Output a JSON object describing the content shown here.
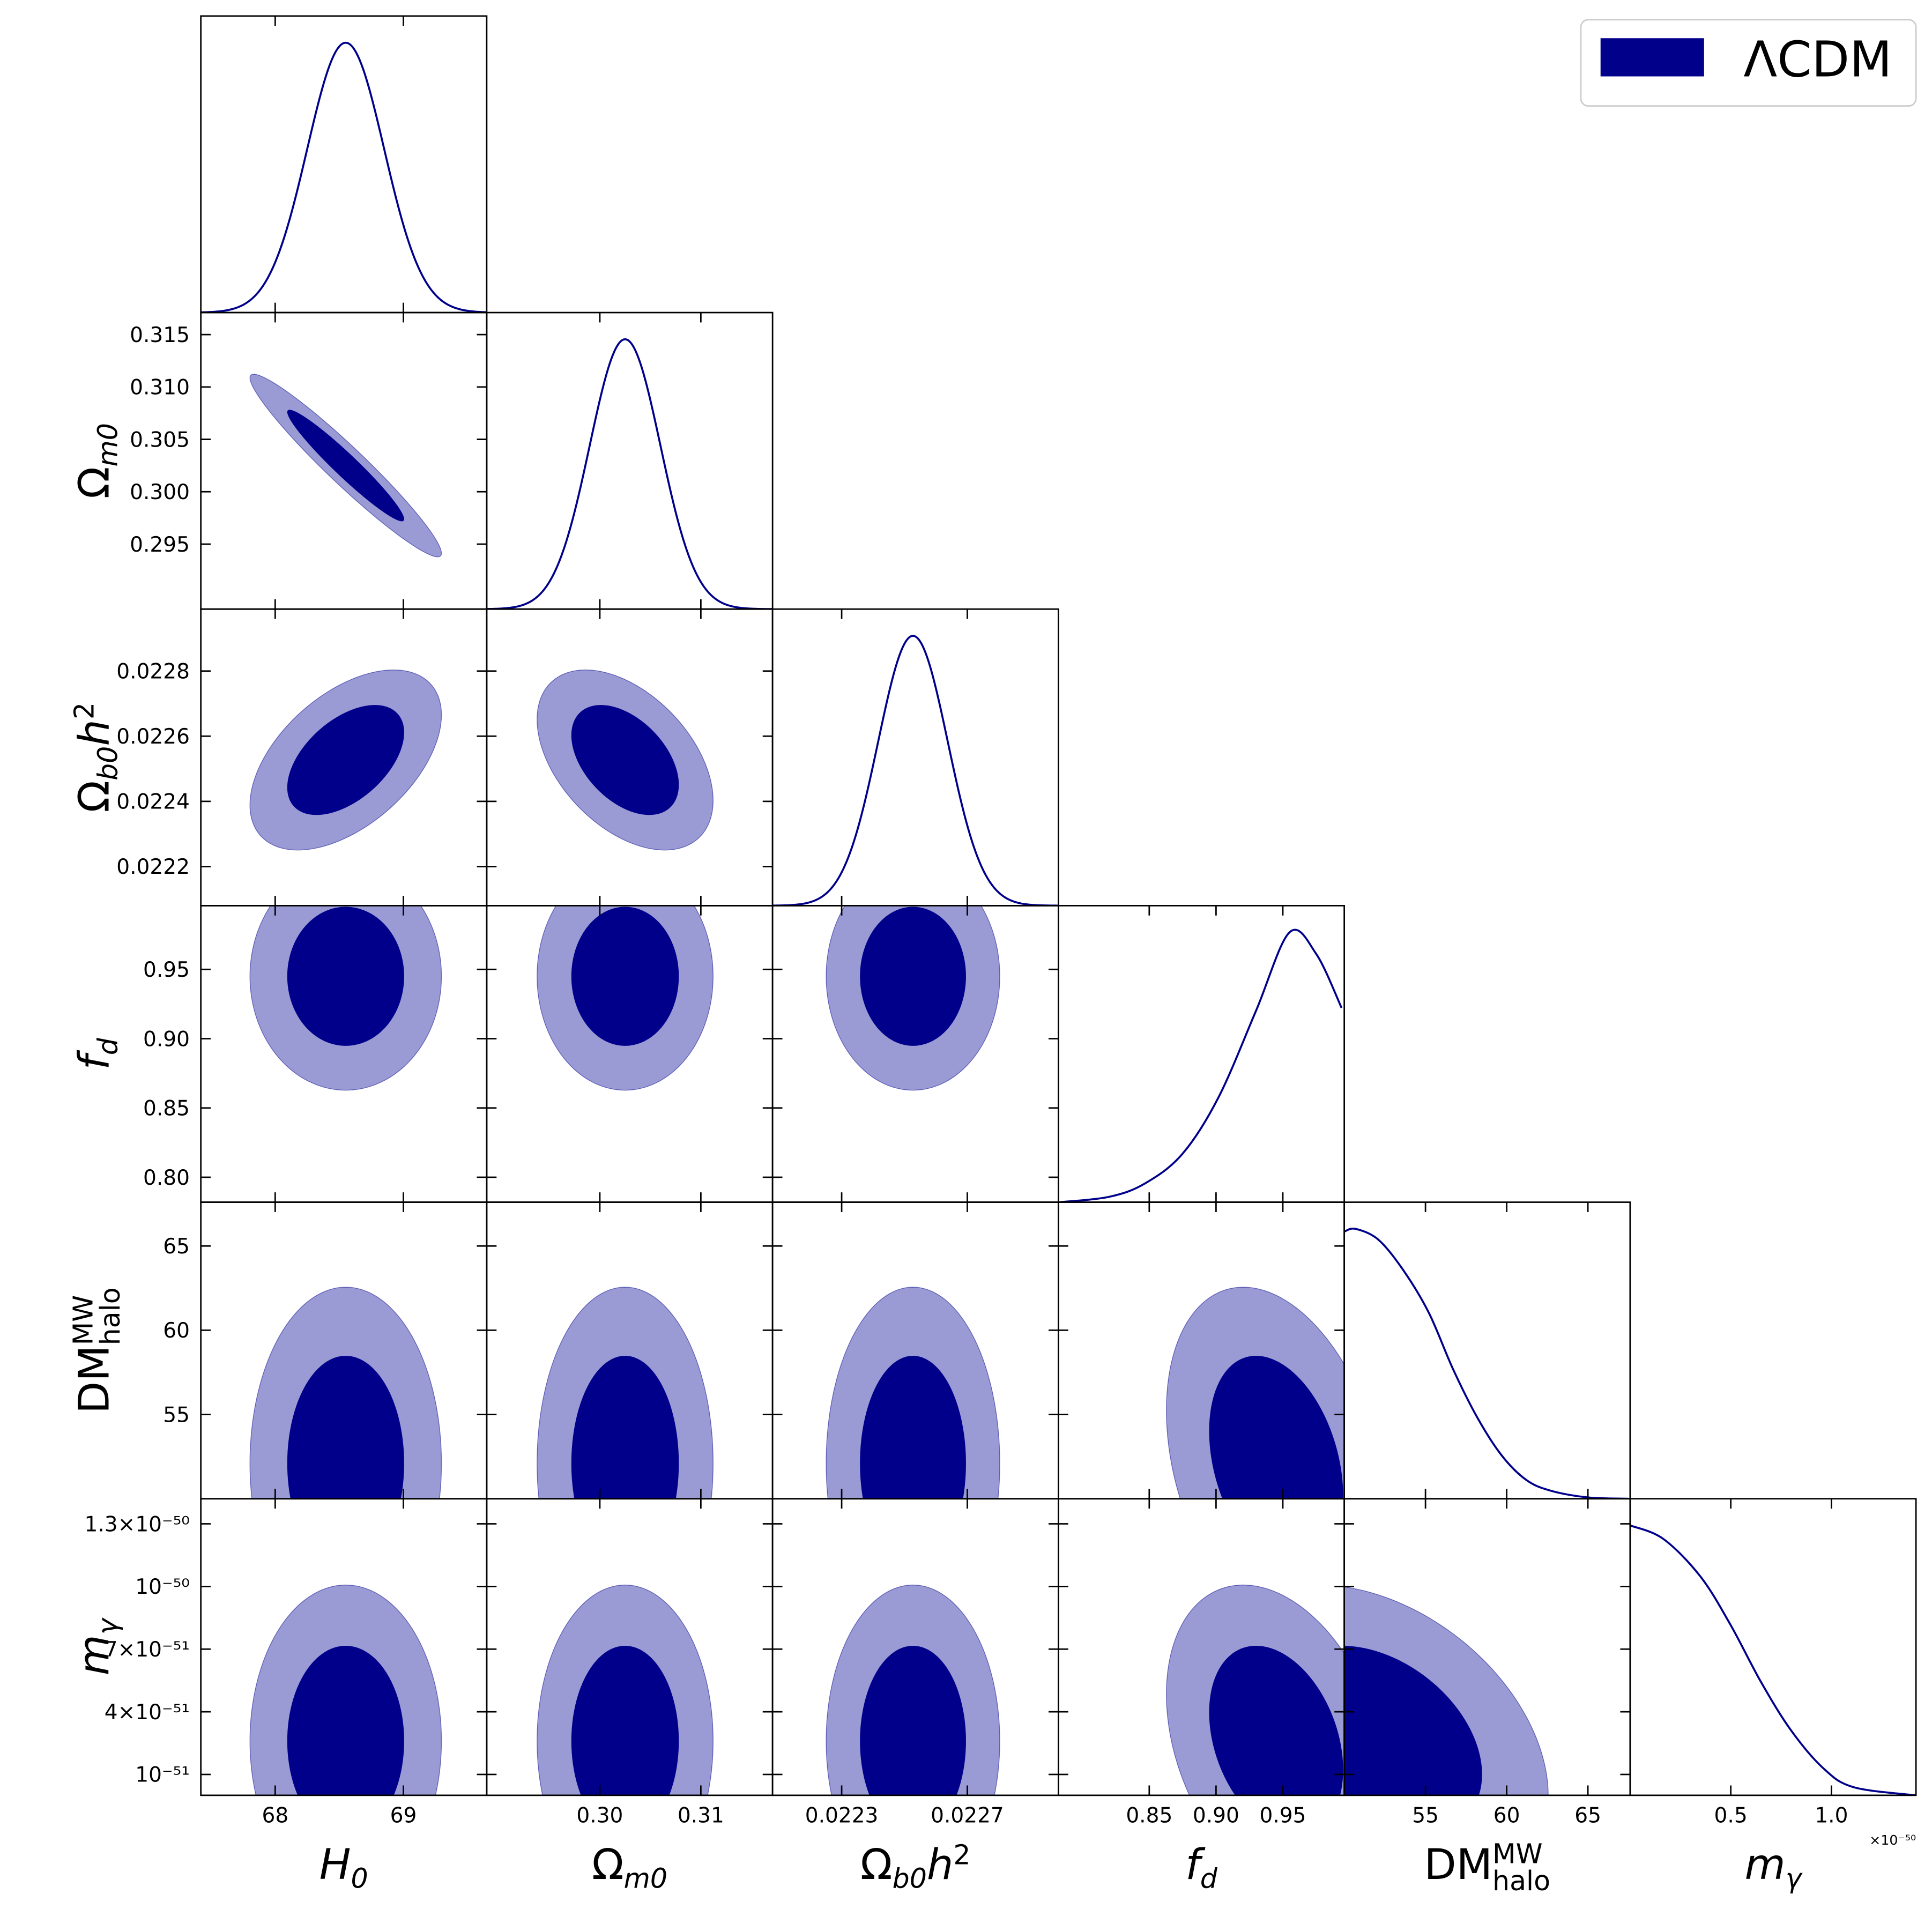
{
  "chart_data": {
    "type": "corner",
    "series": [
      {
        "name": "ΛCDM",
        "color": "#00008b",
        "color_outer": "#9a9ad4"
      }
    ],
    "legend": "upper right",
    "params": [
      {
        "label": {
          "main": "H",
          "sub": "0"
        },
        "italic": true,
        "lim": [
          67.42,
          69.65
        ],
        "mean": 68.55,
        "sigma": 0.3,
        "xticks": [
          68,
          69
        ]
      },
      {
        "label": {
          "main": "Ω",
          "sub": "m0"
        },
        "italic": false,
        "lim": [
          0.2888,
          0.3171
        ],
        "mean": 0.3025,
        "sigma": 0.0035,
        "xticks": [
          {
            "value": 0.3,
            "label": "0.30"
          },
          0.31
        ],
        "yticks": [
          0.295,
          {
            "value": 0.3,
            "label": "0.300"
          },
          0.305,
          {
            "value": 0.31,
            "label": "0.310"
          },
          0.315
        ]
      },
      {
        "label": {
          "main": "Ω",
          "sub": "b0",
          "post": "h",
          "sup": "2"
        },
        "italic": false,
        "lim": [
          0.02208,
          0.02299
        ],
        "mean": 0.022527,
        "sigma": 0.000111,
        "xticks": [
          0.0223,
          0.0227
        ],
        "yticks": [
          0.0222,
          0.0224,
          0.0226,
          0.0228
        ]
      },
      {
        "label": {
          "main": "f",
          "sub": "d"
        },
        "italic": true,
        "lim": [
          0.782,
          0.996
        ],
        "mean": 0.945,
        "sigma": 0.033,
        "xticks": [
          0.85,
          {
            "value": 0.9,
            "label": "0.90"
          },
          0.95
        ],
        "yticks": [
          {
            "value": 0.8,
            "label": "0.80"
          },
          0.85,
          {
            "value": 0.9,
            "label": "0.90"
          },
          0.95
        ],
        "marginal": {
          "x": [
            0.783,
            0.82,
            0.847,
            0.875,
            0.902,
            0.93,
            0.955,
            0.975,
            0.994
          ],
          "density": [
            0,
            0.02,
            0.07,
            0.18,
            0.39,
            0.71,
            1.0,
            0.92,
            0.72
          ]
        }
      },
      {
        "label": {
          "main": "DM",
          "sup": "MW",
          "sub": "halo"
        },
        "italic": false,
        "lim": [
          50,
          67.6
        ],
        "mean": 52.1,
        "sigma": 4.2,
        "xticks": [
          55,
          60,
          65
        ],
        "yticks": [
          55,
          60,
          65
        ],
        "marginal": {
          "x": [
            50,
            50.7,
            52.1,
            53.6,
            55.2,
            56.7,
            58.2,
            59.7,
            61.2,
            62.7,
            65,
            67.5
          ],
          "density": [
            0.99,
            1.0,
            0.96,
            0.85,
            0.69,
            0.48,
            0.3,
            0.16,
            0.07,
            0.03,
            0.005,
            0
          ]
        }
      },
      {
        "label": {
          "main": "m",
          "sub": "γ"
        },
        "italic": true,
        "lim": [
          0,
          1.42
        ],
        "mean": 0.26,
        "sigma": 0.3,
        "xticks": [
          0.5,
          {
            "value": 1,
            "label": "1.0"
          }
        ],
        "yticks": [
          {
            "value": 0.1,
            "label": "10⁻⁵¹"
          },
          {
            "value": 0.4,
            "label": "4×10⁻⁵¹"
          },
          {
            "value": 0.7,
            "label": "7×10⁻⁵¹"
          },
          {
            "value": 1,
            "label": "10⁻⁵⁰"
          },
          {
            "value": 1.3,
            "label": "1.3×10⁻⁵⁰"
          }
        ],
        "offset": "×10⁻⁵⁰",
        "marginal": {
          "x": [
            0,
            0.165,
            0.35,
            0.5,
            0.65,
            0.8,
            0.96,
            1.11,
            1.415
          ],
          "density": [
            1.0,
            0.95,
            0.81,
            0.63,
            0.42,
            0.24,
            0.1,
            0.03,
            0
          ]
        }
      }
    ],
    "correlation": [
      [],
      [
        -0.96
      ],
      [
        0.5,
        -0.45
      ],
      [
        0,
        0,
        0
      ],
      [
        0,
        0,
        0,
        -0.3
      ],
      [
        0,
        0,
        0,
        -0.3,
        -0.35
      ]
    ]
  }
}
